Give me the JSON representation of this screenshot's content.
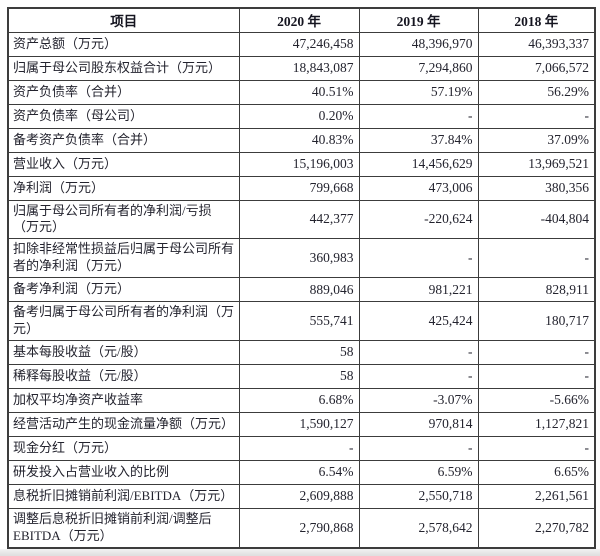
{
  "table": {
    "headers": [
      "项目",
      "2020 年",
      "2019 年",
      "2018 年"
    ],
    "rows": [
      {
        "label": "资产总额（万元）",
        "v2020": "47,246,458",
        "v2019": "48,396,970",
        "v2018": "46,393,337"
      },
      {
        "label": "归属于母公司股东权益合计（万元）",
        "v2020": "18,843,087",
        "v2019": "7,294,860",
        "v2018": "7,066,572"
      },
      {
        "label": "资产负债率（合并）",
        "v2020": "40.51%",
        "v2019": "57.19%",
        "v2018": "56.29%"
      },
      {
        "label": "资产负债率（母公司）",
        "v2020": "0.20%",
        "v2019": "-",
        "v2018": "-"
      },
      {
        "label": "备考资产负债率（合并）",
        "v2020": "40.83%",
        "v2019": "37.84%",
        "v2018": "37.09%"
      },
      {
        "label": "营业收入（万元）",
        "v2020": "15,196,003",
        "v2019": "14,456,629",
        "v2018": "13,969,521"
      },
      {
        "label": "净利润（万元）",
        "v2020": "799,668",
        "v2019": "473,006",
        "v2018": "380,356"
      },
      {
        "label": "归属于母公司所有者的净利润/亏损（万元）",
        "v2020": "442,377",
        "v2019": "-220,624",
        "v2018": "-404,804"
      },
      {
        "label": "扣除非经常性损益后归属于母公司所有者的净利润（万元）",
        "v2020": "360,983",
        "v2019": "-",
        "v2018": "-"
      },
      {
        "label": "备考净利润（万元）",
        "v2020": "889,046",
        "v2019": "981,221",
        "v2018": "828,911"
      },
      {
        "label": "备考归属于母公司所有者的净利润（万元）",
        "v2020": "555,741",
        "v2019": "425,424",
        "v2018": "180,717"
      },
      {
        "label": "基本每股收益（元/股）",
        "v2020": "58",
        "v2019": "-",
        "v2018": "-"
      },
      {
        "label": "稀释每股收益（元/股）",
        "v2020": "58",
        "v2019": "-",
        "v2018": "-"
      },
      {
        "label": "加权平均净资产收益率",
        "v2020": "6.68%",
        "v2019": "-3.07%",
        "v2018": "-5.66%"
      },
      {
        "label": "经营活动产生的现金流量净额（万元）",
        "v2020": "1,590,127",
        "v2019": "970,814",
        "v2018": "1,127,821"
      },
      {
        "label": "现金分红（万元）",
        "v2020": "-",
        "v2019": "-",
        "v2018": "-"
      },
      {
        "label": "研发投入占营业收入的比例",
        "v2020": "6.54%",
        "v2019": "6.59%",
        "v2018": "6.65%"
      },
      {
        "label": "息税折旧摊销前利润/EBITDA（万元）",
        "v2020": "2,609,888",
        "v2019": "2,550,718",
        "v2018": "2,261,561"
      },
      {
        "label": "调整后息税折旧摊销前利润/调整后EBITDA（万元）",
        "v2020": "2,790,868",
        "v2019": "2,578,642",
        "v2018": "2,270,782"
      }
    ]
  }
}
